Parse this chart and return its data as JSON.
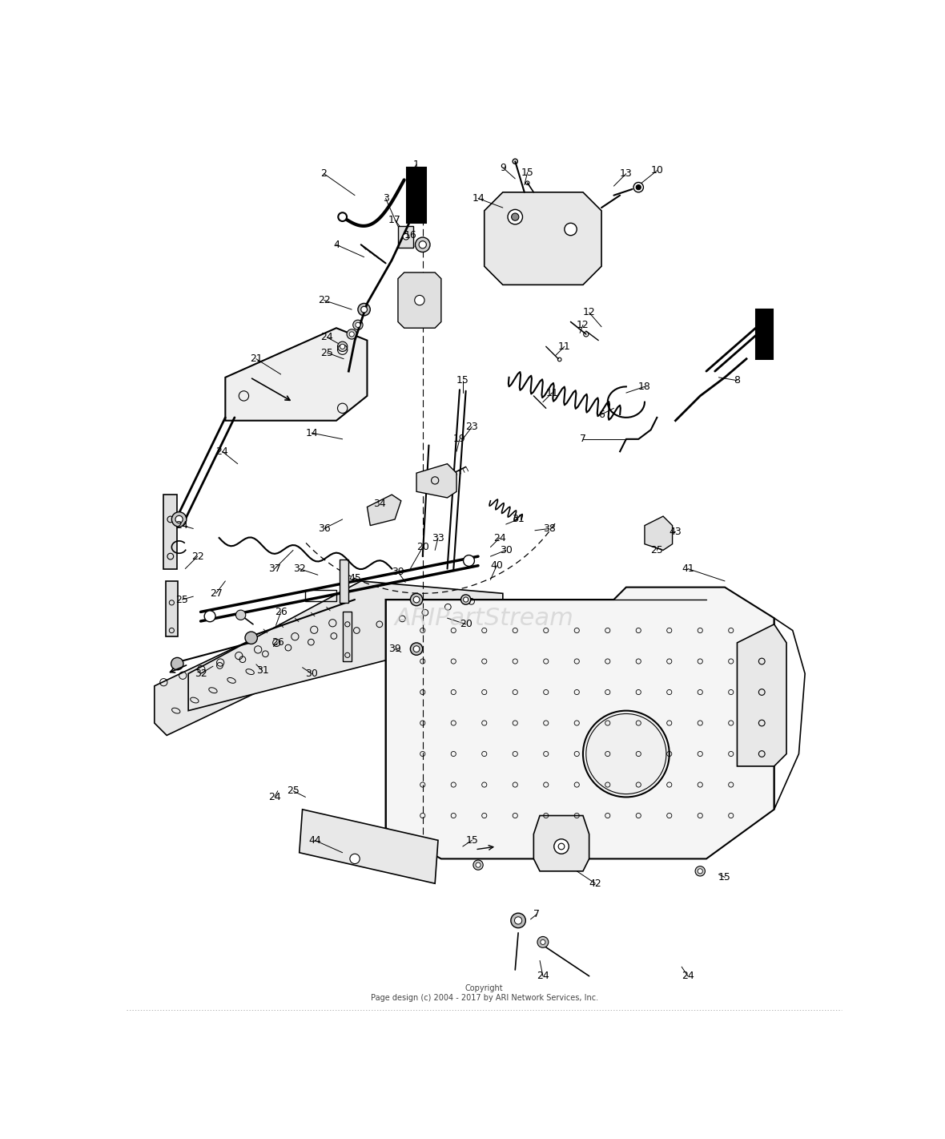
{
  "copyright_line1": "Copyright",
  "copyright_line2": "Page design (c) 2004 - 2017 by ARI Network Services, Inc.",
  "watermark": "ARIPartStream",
  "background_color": "#ffffff",
  "line_color": "#000000",
  "fig_width": 11.8,
  "fig_height": 14.21,
  "dpi": 100
}
